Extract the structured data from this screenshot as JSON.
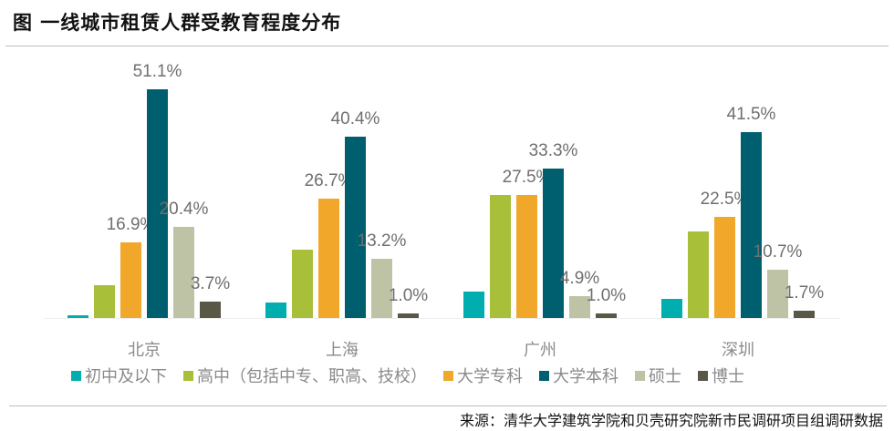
{
  "title": "图  一线城市租赁人群受教育程度分布",
  "source": "来源：清华大学建筑学院和贝壳研究院新市民调研项目组调研数据",
  "chart_data": {
    "type": "bar",
    "title": "图  一线城市租赁人群受教育程度分布",
    "xlabel": "",
    "ylabel": "",
    "ylim": [
      0,
      55
    ],
    "grid": false,
    "legend_position": "bottom",
    "categories": [
      "北京",
      "上海",
      "广州",
      "深圳"
    ],
    "series": [
      {
        "name": "初中及以下",
        "color": "#00AEB0",
        "values": [
          0.6,
          3.5,
          5.8,
          4.3
        ],
        "labeled": false
      },
      {
        "name": "高中（包括中专、职高、技校）",
        "color": "#A8BF3A",
        "values": [
          7.3,
          15.2,
          27.5,
          19.3
        ],
        "labeled": false
      },
      {
        "name": "大学专科",
        "color": "#F0A72A",
        "values": [
          16.9,
          26.7,
          27.5,
          22.5
        ],
        "labeled": true
      },
      {
        "name": "大学本科",
        "color": "#005F6E",
        "values": [
          51.1,
          40.4,
          33.3,
          41.5
        ],
        "labeled": true
      },
      {
        "name": "硕士",
        "color": "#BEC3A6",
        "values": [
          20.4,
          13.2,
          4.9,
          10.7
        ],
        "labeled": true
      },
      {
        "name": "博士",
        "color": "#595746",
        "values": [
          3.7,
          1.0,
          1.0,
          1.7
        ],
        "labeled": true
      }
    ],
    "data_labels": {
      "北京": [
        "16.9%",
        "51.1%",
        "20.4%",
        "3.7%"
      ],
      "上海": [
        "26.7%",
        "40.4%",
        "13.2%",
        "1.0%"
      ],
      "广州": [
        "27.5%",
        "33.3%",
        "4.9%",
        "1.0%"
      ],
      "深圳": [
        "22.5%",
        "41.5%",
        "10.7%",
        "1.7%"
      ]
    }
  },
  "legend": [
    {
      "label": "初中及以下",
      "color": "#00AEB0"
    },
    {
      "label": "高中（包括中专、职高、技校）",
      "color": "#A8BF3A"
    },
    {
      "label": "大学专科",
      "color": "#F0A72A"
    },
    {
      "label": "大学本科",
      "color": "#005F6E"
    },
    {
      "label": "硕士",
      "color": "#BEC3A6"
    },
    {
      "label": "博士",
      "color": "#595746"
    }
  ]
}
